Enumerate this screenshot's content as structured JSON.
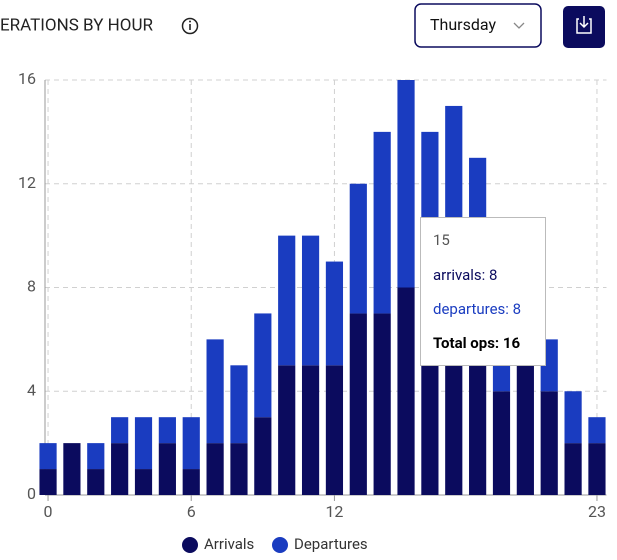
{
  "header": {
    "title": "ERATIONS BY HOUR",
    "dropdown": "Thursday"
  },
  "chart_data": {
    "type": "stacked-bar",
    "x": [
      0,
      1,
      2,
      3,
      4,
      5,
      6,
      7,
      8,
      9,
      10,
      11,
      12,
      13,
      14,
      15,
      16,
      17,
      18,
      19,
      20,
      21,
      22,
      23
    ],
    "series": [
      {
        "name": "Arrivals",
        "color": "#0b0b5e",
        "values": [
          1,
          2,
          1,
          2,
          1,
          2,
          1,
          2,
          2,
          3,
          5,
          5,
          5,
          7,
          7,
          8,
          7,
          7,
          6,
          4,
          5,
          4,
          2,
          2
        ]
      },
      {
        "name": "Departures",
        "color": "#1a3cc0",
        "values": [
          1,
          0,
          1,
          1,
          2,
          1,
          2,
          4,
          3,
          4,
          5,
          5,
          4,
          5,
          7,
          8,
          7,
          8,
          7,
          4,
          2,
          2,
          2,
          1
        ]
      }
    ],
    "xlim": [
      -0.4,
      23.4
    ],
    "xticks": [
      0,
      6,
      12,
      23
    ],
    "ylim": [
      0,
      16
    ],
    "yticks": [
      0,
      4,
      8,
      12,
      16
    ],
    "grid": true,
    "legend": "bottom",
    "tooltip": {
      "title": "15",
      "lines": [
        "arrivals: 8",
        "departures: 8",
        "Total ops: 16"
      ]
    }
  }
}
